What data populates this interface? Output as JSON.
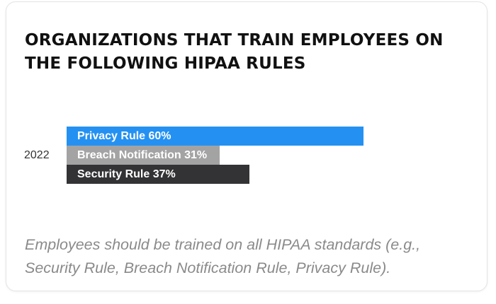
{
  "title": "ORGANIZATIONS THAT TRAIN EMPLOYEES ON THE FOLLOWING HIPAA RULES",
  "note": "Employees should be trained on all HIPAA standards (e.g., Security Rule, Breach Notification Rule, Privacy Rule).",
  "chart_data": {
    "type": "bar",
    "orientation": "horizontal",
    "categories": [
      "2022"
    ],
    "series": [
      {
        "name": "Privacy Rule",
        "values": [
          60
        ],
        "color": "#2491f2",
        "label": "Privacy Rule 60%"
      },
      {
        "name": "Breach Notification",
        "values": [
          31
        ],
        "color": "#a3a3a3",
        "label": "Breach Notification 31%"
      },
      {
        "name": "Security Rule",
        "values": [
          37
        ],
        "color": "#333235",
        "label": "Security Rule 37%"
      }
    ],
    "unit": "%",
    "xlim": [
      0,
      100
    ],
    "grid": false,
    "legend": "none"
  }
}
